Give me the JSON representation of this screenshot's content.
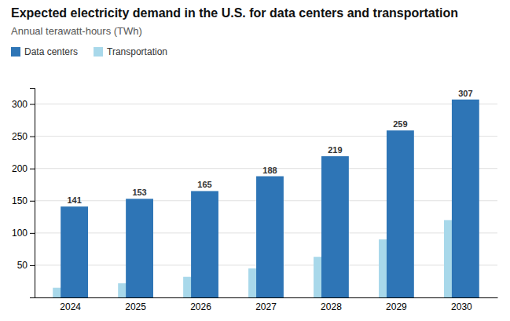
{
  "chart_data": {
    "type": "bar",
    "title": "Expected electricity demand in the U.S. for data centers and transportation",
    "subtitle": "Annual terawatt-hours (TWh)",
    "categories": [
      "2024",
      "2025",
      "2026",
      "2027",
      "2028",
      "2029",
      "2030"
    ],
    "series": [
      {
        "name": "Data centers",
        "color": "#2E75B6",
        "values": [
          141,
          153,
          165,
          188,
          219,
          259,
          307
        ],
        "data_labels": true
      },
      {
        "name": "Transportation",
        "color": "#A8D8EA",
        "values": [
          15,
          22,
          32,
          45,
          63,
          90,
          120
        ]
      }
    ],
    "ylim": [
      0,
      325
    ],
    "yticks": [
      50,
      100,
      150,
      200,
      250,
      300
    ],
    "grid": true,
    "legend": "top-left"
  }
}
